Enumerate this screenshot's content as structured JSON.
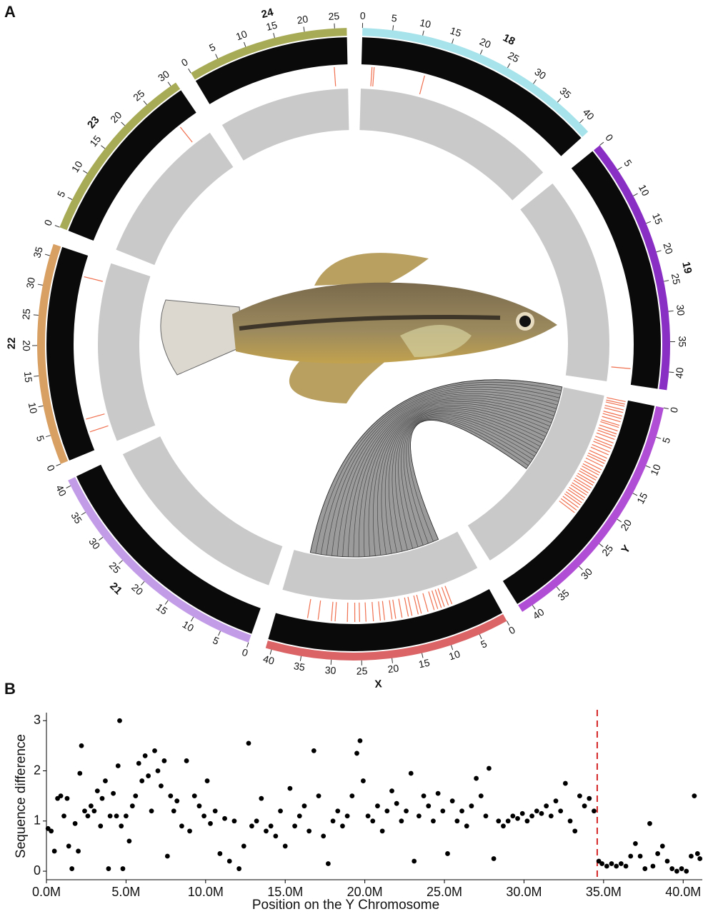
{
  "chart_data": [
    {
      "type": "circos",
      "panel": "A",
      "chromosomes": [
        {
          "name": "18",
          "length": 42,
          "color": "#a6e3ea",
          "ticks": [
            0,
            5,
            10,
            15,
            20,
            25,
            30,
            35,
            40
          ]
        },
        {
          "name": "19",
          "length": 43,
          "color": "#8a2fc4",
          "ticks": [
            0,
            5,
            10,
            15,
            20,
            25,
            30,
            35,
            40
          ]
        },
        {
          "name": "Y",
          "length": 42,
          "color": "#b04ed6",
          "ticks": [
            0,
            5,
            10,
            15,
            20,
            25,
            30,
            35,
            40
          ]
        },
        {
          "name": "X",
          "length": 41,
          "color": "#da6466",
          "ticks": [
            0,
            5,
            10,
            15,
            20,
            25,
            30,
            35,
            40
          ]
        },
        {
          "name": "21",
          "length": 41,
          "color": "#c39ce8",
          "ticks": [
            0,
            5,
            10,
            15,
            20,
            25,
            30,
            35,
            40
          ]
        },
        {
          "name": "22",
          "length": 37,
          "color": "#d9a064",
          "ticks": [
            0,
            5,
            10,
            15,
            20,
            25,
            30,
            35
          ]
        },
        {
          "name": "23",
          "length": 31,
          "color": "#a8ab55",
          "ticks": [
            0,
            5,
            10,
            15,
            20,
            25,
            30
          ]
        },
        {
          "name": "24",
          "length": 27,
          "color": "#a8ab55",
          "ticks": [
            0,
            5,
            10,
            15,
            20,
            25
          ]
        }
      ],
      "marks": [
        {
          "chrom": 0,
          "color": "#f0704f",
          "positions": [
            2,
            2.4,
            12
          ]
        },
        {
          "chrom": 1,
          "color": "#f0704f",
          "positions": [
            40
          ]
        },
        {
          "chrom": 2,
          "color": "#f0704f",
          "positions": [
            0.3,
            0.8,
            1.2,
            1.9,
            2.4,
            3.1,
            3.6,
            4.2,
            4.9,
            5.3,
            6.0,
            6.6,
            7.1,
            7.7,
            8.4,
            9.0,
            9.5,
            10.2,
            10.8,
            11.5,
            12.1,
            12.6,
            13.2,
            13.9,
            14.5,
            15.0,
            15.6,
            16.1,
            16.7,
            17.2,
            17.8,
            18.3,
            18.9,
            19.4,
            20.0,
            20.5,
            21.1,
            21.6,
            22.2,
            22.8,
            23.4
          ]
        },
        {
          "chrom": 3,
          "color": "#f0704f",
          "positions": [
            7.5,
            8.2,
            9.0,
            9.6,
            10.3,
            11,
            12.2,
            13.5,
            14.1,
            15.3,
            16,
            17.2,
            18.4,
            19.1,
            20.5,
            21.3,
            22.6,
            24,
            25.2,
            26.1,
            27.5,
            29.8,
            30.5,
            33,
            35
          ]
        },
        {
          "chrom": 5,
          "color": "#f0704f",
          "positions": [
            3.5,
            6,
            33
          ]
        },
        {
          "chrom": 6,
          "color": "#f0704f",
          "positions": [
            27
          ]
        },
        {
          "chrom": 7,
          "color": "#f0704f",
          "positions": [
            24.5
          ]
        }
      ],
      "links": [
        {
          "source": 2,
          "start": 0,
          "end": 22,
          "target": 3,
          "target_start": 37,
          "target_end": 5
        }
      ]
    },
    {
      "type": "scatter",
      "panel": "B",
      "x_label": "Position on the Y Chromosome",
      "y_label": "Sequence difference",
      "color": "#000000",
      "x": [
        100000,
        300000,
        500000,
        700000,
        900000,
        1100000,
        1300000,
        1400000,
        1600000,
        1800000,
        2000000,
        2100000,
        2200000,
        2400000,
        2600000,
        2800000,
        3000000,
        3200000,
        3400000,
        3500000,
        3700000,
        3900000,
        4000000,
        4200000,
        4400000,
        4500000,
        4600000,
        4700000,
        4800000,
        5000000,
        5200000,
        5400000,
        5600000,
        5800000,
        6000000,
        6200000,
        6400000,
        6600000,
        6800000,
        7000000,
        7200000,
        7400000,
        7600000,
        7800000,
        8000000,
        8200000,
        8500000,
        8800000,
        9000000,
        9300000,
        9600000,
        9900000,
        10100000,
        10300000,
        10600000,
        10900000,
        11200000,
        11500000,
        11800000,
        12100000,
        12400000,
        12700000,
        12900000,
        13200000,
        13500000,
        13800000,
        14100000,
        14400000,
        14700000,
        15000000,
        15300000,
        15600000,
        15900000,
        16200000,
        16500000,
        16800000,
        17100000,
        17400000,
        17700000,
        18000000,
        18300000,
        18600000,
        18900000,
        19200000,
        19500000,
        19700000,
        19900000,
        20200000,
        20500000,
        20800000,
        21100000,
        21400000,
        21700000,
        22000000,
        22300000,
        22600000,
        22900000,
        23100000,
        23400000,
        23700000,
        24000000,
        24300000,
        24600000,
        24900000,
        25200000,
        25500000,
        25800000,
        26100000,
        26400000,
        26700000,
        27000000,
        27300000,
        27600000,
        27800000,
        28100000,
        28400000,
        28700000,
        29000000,
        29300000,
        29600000,
        29900000,
        30200000,
        30500000,
        30800000,
        31100000,
        31400000,
        31700000,
        32000000,
        32300000,
        32600000,
        32900000,
        33200000,
        33500000,
        33800000,
        34100000,
        34400000,
        34700000,
        34900000,
        35200000,
        35500000,
        35800000,
        36100000,
        36400000,
        36700000,
        37000000,
        37300000,
        37600000,
        37900000,
        38100000,
        38400000,
        38700000,
        39000000,
        39300000,
        39600000,
        39900000,
        40200000,
        40500000,
        40700000,
        40900000,
        41050000
      ],
      "values": [
        0.85,
        0.8,
        0.4,
        1.45,
        1.5,
        1.1,
        1.45,
        0.5,
        0.05,
        0.95,
        0.4,
        1.95,
        2.5,
        1.2,
        1.1,
        1.3,
        1.2,
        1.6,
        0.9,
        1.45,
        1.8,
        0.05,
        1.1,
        1.55,
        1.1,
        2.1,
        3.0,
        0.9,
        0.05,
        1.1,
        0.6,
        1.3,
        1.5,
        2.15,
        1.8,
        2.3,
        1.9,
        1.2,
        2.4,
        2.0,
        1.7,
        2.2,
        0.3,
        1.5,
        1.2,
        1.4,
        0.9,
        2.2,
        0.8,
        1.5,
        1.3,
        1.1,
        1.8,
        0.95,
        1.2,
        0.35,
        1.05,
        0.2,
        1.0,
        0.05,
        0.5,
        2.55,
        0.9,
        1.0,
        1.45,
        0.8,
        0.9,
        0.7,
        1.2,
        0.5,
        1.65,
        0.9,
        1.1,
        1.3,
        0.8,
        2.4,
        1.5,
        0.7,
        0.15,
        1.0,
        1.2,
        0.9,
        1.1,
        1.5,
        2.35,
        2.6,
        1.8,
        1.1,
        1.0,
        1.3,
        0.8,
        1.2,
        1.6,
        1.35,
        1.0,
        1.2,
        1.95,
        0.2,
        1.1,
        1.5,
        1.3,
        1.0,
        1.55,
        1.2,
        0.35,
        1.4,
        1.0,
        1.2,
        0.9,
        1.3,
        1.85,
        1.5,
        1.1,
        2.05,
        0.25,
        1.0,
        0.9,
        1.0,
        1.1,
        1.05,
        1.15,
        1.0,
        1.1,
        1.2,
        1.15,
        1.3,
        1.1,
        1.4,
        1.2,
        1.75,
        1.0,
        0.8,
        1.5,
        1.3,
        1.45,
        1.2,
        0.2,
        0.15,
        0.1,
        0.15,
        0.1,
        0.15,
        0.1,
        0.3,
        0.55,
        0.3,
        0.05,
        0.95,
        0.1,
        0.35,
        0.5,
        0.2,
        0.05,
        0.0,
        0.05,
        0.0,
        0.3,
        1.5,
        0.35,
        0.25
      ],
      "xlim": [
        0,
        41200000
      ],
      "ylim": [
        -0.17,
        3.16
      ],
      "xticks": [
        {
          "value": 0,
          "label": "0.0M"
        },
        {
          "value": 5000000,
          "label": "5.0M"
        },
        {
          "value": 10000000,
          "label": "10.0M"
        },
        {
          "value": 15000000,
          "label": "15.0M"
        },
        {
          "value": 20000000,
          "label": "20.0M"
        },
        {
          "value": 25000000,
          "label": "25.0M"
        },
        {
          "value": 30000000,
          "label": "30.0M"
        },
        {
          "value": 35000000,
          "label": "35.0M"
        },
        {
          "value": 40000000,
          "label": "40.0M"
        }
      ],
      "yticks": [
        0,
        1,
        2,
        3
      ],
      "vline": {
        "x": 34600000,
        "color": "#d62728"
      }
    }
  ]
}
